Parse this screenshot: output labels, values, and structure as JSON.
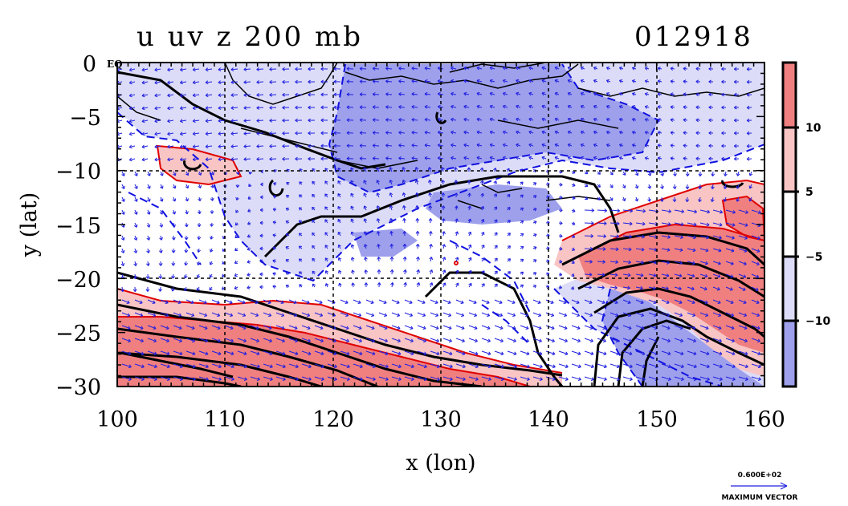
{
  "title": {
    "left": "u uv z 200 mb",
    "right": "012918"
  },
  "map": {
    "xlabel": "x (lon)",
    "ylabel": "y (lat)",
    "x_ticks": [
      "100",
      "110",
      "120",
      "130",
      "140",
      "150",
      "160"
    ],
    "y_ticks": [
      "0",
      "−5",
      "−10",
      "−15",
      "−20",
      "−25",
      "−30"
    ],
    "corner_label": "EQ",
    "x_range": [
      100,
      160
    ],
    "y_range": [
      -30,
      0
    ],
    "grid_lines_lon": [
      110,
      120,
      130,
      140,
      150
    ],
    "grid_lines_lat": [
      -10,
      -20
    ]
  },
  "colorbar": {
    "tick_labels": [
      "10",
      "5",
      "−5",
      "−10"
    ],
    "colors": [
      "#f08080",
      "#f8c4c4",
      "#ffffff",
      "#dcdcf8",
      "#9ea0ec"
    ]
  },
  "vector_key": {
    "magnitude": "0.600E+02",
    "label": "MAXIMUM VECTOR"
  },
  "colors": {
    "positive_contour": "#e00000",
    "negative_contour": "#1010e0",
    "height_contour": "#000000",
    "vector": "#2020e0"
  }
}
